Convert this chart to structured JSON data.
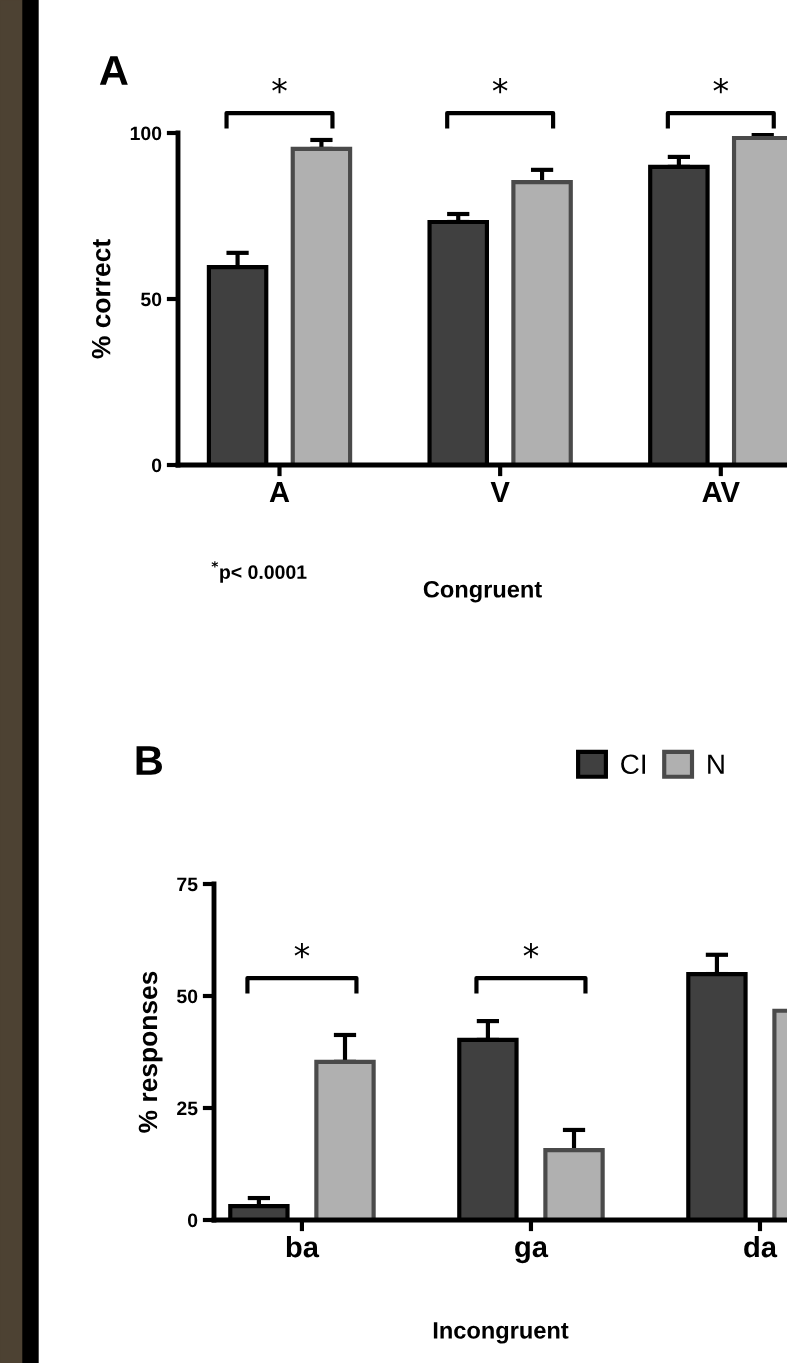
{
  "chart_data": [
    {
      "type": "bar",
      "title": "A",
      "ylabel": "% correct",
      "xlabel": "Congruent",
      "categories": [
        "A",
        "V",
        "AV"
      ],
      "series": [
        {
          "name": "CI",
          "color": "#404040",
          "values": [
            59.6,
            73.2,
            89.8
          ],
          "errors": [
            [
              59.6,
              63.9
            ],
            [
              73.2,
              75.6
            ],
            [
              89.8,
              92.8
            ]
          ]
        },
        {
          "name": "N",
          "color": "#b0b0b0",
          "values": [
            95.2,
            85.2,
            98.5
          ],
          "errors": [
            [
              95.2,
              97.9
            ],
            [
              85.2,
              88.9
            ],
            [
              98.5,
              99.7
            ]
          ]
        }
      ],
      "ylim": [
        0,
        100
      ],
      "yticks": [
        0,
        50,
        100
      ],
      "grid": false,
      "legend": "bottom right",
      "annotations": [
        "*",
        "*",
        "*",
        "$^{*}$p< 0.0001"
      ]
    },
    {
      "type": "bar",
      "title": "B",
      "ylabel": "% responses",
      "xlabel": "Incongruent",
      "categories": [
        "ba",
        "ga",
        "da"
      ],
      "series": [
        {
          "color": "#404040",
          "values": [
            3.1,
            40.2,
            54.9
          ],
          "errors": [
            [
              3.1,
              4.9
            ],
            [
              40.2,
              44.4
            ],
            [
              54.9,
              59.2
            ]
          ]
        },
        {
          "color": "#b0b0b0",
          "values": [
            35.3,
            15.6,
            46.7
          ],
          "errors": [
            [
              35.3,
              41.3
            ],
            [
              15.6,
              20.1
            ],
            null
          ]
        }
      ],
      "ylim": [
        0,
        75
      ],
      "yticks": [
        0,
        25,
        50,
        75
      ],
      "grid": false,
      "annotations": [
        "*",
        "*"
      ]
    }
  ]
}
